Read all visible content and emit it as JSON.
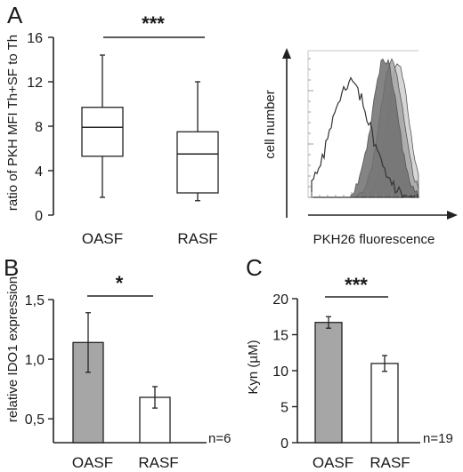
{
  "panels": {
    "A": "A",
    "B": "B",
    "C": "C"
  },
  "chart_data": [
    {
      "panel": "A",
      "type": "box",
      "categories": [
        "OASF",
        "RASF"
      ],
      "boxes": [
        {
          "min": 1.6,
          "q1": 5.3,
          "median": 7.9,
          "q3": 9.7,
          "max": 14.4
        },
        {
          "min": 1.3,
          "q1": 2.0,
          "median": 5.5,
          "q3": 7.5,
          "max": 12.0
        }
      ],
      "ylabel": "ratio of PKH MFI Th+SF to Th",
      "ylim": [
        0,
        16
      ],
      "yticks": [
        "0",
        "4",
        "8",
        "12",
        "16"
      ],
      "significance": "***",
      "grid": false
    },
    {
      "panel": "A",
      "type": "histogram-overlay",
      "xlabel": "PKH26 fluorescence",
      "ylabel": "cell number",
      "series": [
        {
          "style": "open-outline",
          "color": "#333333"
        },
        {
          "style": "filled-dark",
          "color": "#6e6e6e"
        },
        {
          "style": "filled-mid",
          "color": "#a6a6a6"
        },
        {
          "style": "filled-light",
          "color": "#cfcfcf"
        }
      ]
    },
    {
      "panel": "B",
      "type": "bar",
      "categories": [
        "OASF",
        "RASF"
      ],
      "values": [
        1.14,
        0.68
      ],
      "errors": [
        0.25,
        0.09
      ],
      "colors": [
        "#a6a6a6",
        "#ffffff"
      ],
      "ylabel": "relative IDO1 expression",
      "ylim": [
        0.3,
        1.5
      ],
      "yticks": [
        "0,5",
        "1,0",
        "1,5"
      ],
      "significance": "*",
      "n_label": "n=6"
    },
    {
      "panel": "C",
      "type": "bar",
      "categories": [
        "OASF",
        "RASF"
      ],
      "values": [
        16.7,
        11.0
      ],
      "errors": [
        0.8,
        1.1
      ],
      "colors": [
        "#a6a6a6",
        "#ffffff"
      ],
      "ylabel": "Kyn (µM)",
      "ylim": [
        0,
        20
      ],
      "yticks": [
        "0",
        "5",
        "10",
        "15",
        "20"
      ],
      "significance": "***",
      "n_label": "n=19"
    }
  ]
}
